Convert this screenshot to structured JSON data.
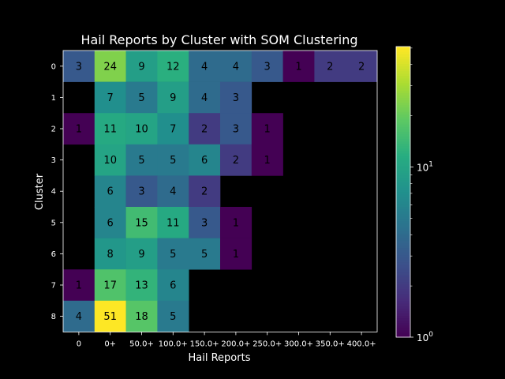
{
  "chart_data": {
    "type": "heatmap",
    "title": "Hail Reports by Cluster with SOM Clustering",
    "xlabel": "Hail Reports",
    "ylabel": "Cluster",
    "x_categories": [
      "0",
      "0+",
      "50.0+",
      "100.0+",
      "150.0+",
      "200.0+",
      "250.0+",
      "300.0+",
      "350.0+",
      "400.0+"
    ],
    "y_categories": [
      "0",
      "1",
      "2",
      "3",
      "4",
      "5",
      "6",
      "7",
      "8"
    ],
    "values": [
      [
        3,
        24,
        9,
        12,
        4,
        4,
        3,
        1,
        2,
        2
      ],
      [
        null,
        7,
        5,
        9,
        4,
        3,
        null,
        null,
        null,
        null
      ],
      [
        1,
        11,
        10,
        7,
        2,
        3,
        1,
        null,
        null,
        null
      ],
      [
        null,
        10,
        5,
        5,
        6,
        2,
        1,
        null,
        null,
        null
      ],
      [
        null,
        6,
        3,
        4,
        2,
        null,
        null,
        null,
        null,
        null
      ],
      [
        null,
        6,
        15,
        11,
        3,
        1,
        null,
        null,
        null,
        null
      ],
      [
        null,
        8,
        9,
        5,
        5,
        1,
        null,
        null,
        null,
        null
      ],
      [
        1,
        17,
        13,
        6,
        null,
        null,
        null,
        null,
        null,
        null
      ],
      [
        4,
        51,
        18,
        5,
        null,
        null,
        null,
        null,
        null,
        null
      ]
    ],
    "colormap": "viridis",
    "color_scale": "log",
    "vmin": 1,
    "vmax": 51,
    "colorbar_ticks": [
      {
        "value": 1,
        "label": "10",
        "exp": "0"
      },
      {
        "value": 10,
        "label": "10",
        "exp": "1"
      }
    ],
    "background": "#000000"
  }
}
